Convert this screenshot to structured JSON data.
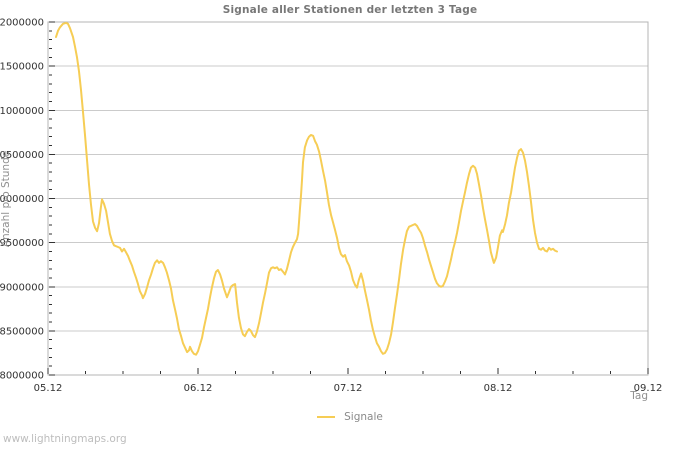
{
  "title": "Signale aller Stationen der letzten 3 Tage",
  "watermark": "www.lightningmaps.org",
  "legend": {
    "label": "Signale"
  },
  "colors": {
    "line": "#f6cd55",
    "grid": "#cbcbcb",
    "border": "#b4b4b4",
    "tick": "#333333",
    "tick_label": "#333333",
    "muted_text": "#909090",
    "title_text": "#777777",
    "watermark_text": "#bdbdbd"
  },
  "chart_data": {
    "type": "line",
    "title": "Signale aller Stationen der letzten 3 Tage",
    "xlabel": "Tag",
    "ylabel": "Anzahl pro Stunde",
    "grid": true,
    "legend_position": "bottom-center",
    "ylim": [
      8000000,
      12000000
    ],
    "x_range_days": [
      0,
      4
    ],
    "y_minor_step": 100000,
    "x_minor_step_days": 0.25,
    "y_ticks": [
      {
        "value": 8000000,
        "label": "8000000"
      },
      {
        "value": 8500000,
        "label": "8500000"
      },
      {
        "value": 9000000,
        "label": "9000000"
      },
      {
        "value": 9500000,
        "label": "9500000"
      },
      {
        "value": 10000000,
        "label": "10000000"
      },
      {
        "value": 10500000,
        "label": "10500000"
      },
      {
        "value": 11000000,
        "label": "11000000"
      },
      {
        "value": 11500000,
        "label": "11500000"
      },
      {
        "value": 12000000,
        "label": "12000000"
      }
    ],
    "x_ticks": [
      {
        "day": 0,
        "label": "05.12"
      },
      {
        "day": 1,
        "label": "06.12"
      },
      {
        "day": 2,
        "label": "07.12"
      },
      {
        "day": 3,
        "label": "08.12"
      },
      {
        "day": 4,
        "label": "09.12"
      }
    ],
    "series": [
      {
        "name": "Signale",
        "color": "#f6cd55",
        "points": [
          [
            0.053,
            11830000
          ],
          [
            0.067,
            11900000
          ],
          [
            0.08,
            11940000
          ],
          [
            0.1,
            11980000
          ],
          [
            0.12,
            11990000
          ],
          [
            0.133,
            11980000
          ],
          [
            0.147,
            11930000
          ],
          [
            0.167,
            11830000
          ],
          [
            0.18,
            11720000
          ],
          [
            0.193,
            11600000
          ],
          [
            0.207,
            11440000
          ],
          [
            0.22,
            11230000
          ],
          [
            0.233,
            10980000
          ],
          [
            0.247,
            10720000
          ],
          [
            0.26,
            10440000
          ],
          [
            0.273,
            10160000
          ],
          [
            0.287,
            9930000
          ],
          [
            0.3,
            9740000
          ],
          [
            0.313,
            9670000
          ],
          [
            0.327,
            9630000
          ],
          [
            0.34,
            9720000
          ],
          [
            0.353,
            9900000
          ],
          [
            0.36,
            9990000
          ],
          [
            0.373,
            9940000
          ],
          [
            0.387,
            9860000
          ],
          [
            0.4,
            9730000
          ],
          [
            0.413,
            9600000
          ],
          [
            0.427,
            9520000
          ],
          [
            0.44,
            9470000
          ],
          [
            0.453,
            9460000
          ],
          [
            0.467,
            9450000
          ],
          [
            0.48,
            9440000
          ],
          [
            0.493,
            9400000
          ],
          [
            0.507,
            9430000
          ],
          [
            0.52,
            9390000
          ],
          [
            0.533,
            9350000
          ],
          [
            0.547,
            9290000
          ],
          [
            0.56,
            9240000
          ],
          [
            0.573,
            9170000
          ],
          [
            0.587,
            9100000
          ],
          [
            0.6,
            9030000
          ],
          [
            0.613,
            8950000
          ],
          [
            0.627,
            8900000
          ],
          [
            0.633,
            8870000
          ],
          [
            0.647,
            8920000
          ],
          [
            0.66,
            8990000
          ],
          [
            0.673,
            9070000
          ],
          [
            0.687,
            9140000
          ],
          [
            0.7,
            9210000
          ],
          [
            0.713,
            9270000
          ],
          [
            0.727,
            9300000
          ],
          [
            0.74,
            9270000
          ],
          [
            0.753,
            9290000
          ],
          [
            0.767,
            9270000
          ],
          [
            0.78,
            9220000
          ],
          [
            0.793,
            9160000
          ],
          [
            0.807,
            9070000
          ],
          [
            0.82,
            8980000
          ],
          [
            0.833,
            8850000
          ],
          [
            0.847,
            8740000
          ],
          [
            0.86,
            8640000
          ],
          [
            0.873,
            8520000
          ],
          [
            0.887,
            8440000
          ],
          [
            0.9,
            8360000
          ],
          [
            0.913,
            8310000
          ],
          [
            0.927,
            8260000
          ],
          [
            0.94,
            8280000
          ],
          [
            0.947,
            8320000
          ],
          [
            0.96,
            8270000
          ],
          [
            0.973,
            8240000
          ],
          [
            0.987,
            8230000
          ],
          [
            1.0,
            8270000
          ],
          [
            1.013,
            8340000
          ],
          [
            1.027,
            8420000
          ],
          [
            1.04,
            8540000
          ],
          [
            1.053,
            8640000
          ],
          [
            1.067,
            8750000
          ],
          [
            1.08,
            8880000
          ],
          [
            1.093,
            8990000
          ],
          [
            1.107,
            9100000
          ],
          [
            1.12,
            9170000
          ],
          [
            1.133,
            9190000
          ],
          [
            1.147,
            9140000
          ],
          [
            1.16,
            9070000
          ],
          [
            1.173,
            8980000
          ],
          [
            1.187,
            8910000
          ],
          [
            1.193,
            8880000
          ],
          [
            1.207,
            8940000
          ],
          [
            1.22,
            9000000
          ],
          [
            1.233,
            9020000
          ],
          [
            1.247,
            9030000
          ],
          [
            1.26,
            8820000
          ],
          [
            1.273,
            8650000
          ],
          [
            1.287,
            8530000
          ],
          [
            1.3,
            8460000
          ],
          [
            1.313,
            8440000
          ],
          [
            1.327,
            8490000
          ],
          [
            1.34,
            8520000
          ],
          [
            1.353,
            8500000
          ],
          [
            1.367,
            8450000
          ],
          [
            1.38,
            8430000
          ],
          [
            1.393,
            8490000
          ],
          [
            1.407,
            8590000
          ],
          [
            1.42,
            8700000
          ],
          [
            1.433,
            8820000
          ],
          [
            1.447,
            8930000
          ],
          [
            1.46,
            9040000
          ],
          [
            1.473,
            9160000
          ],
          [
            1.487,
            9210000
          ],
          [
            1.5,
            9220000
          ],
          [
            1.513,
            9210000
          ],
          [
            1.527,
            9220000
          ],
          [
            1.54,
            9190000
          ],
          [
            1.553,
            9200000
          ],
          [
            1.567,
            9170000
          ],
          [
            1.58,
            9140000
          ],
          [
            1.593,
            9200000
          ],
          [
            1.607,
            9300000
          ],
          [
            1.62,
            9390000
          ],
          [
            1.633,
            9450000
          ],
          [
            1.647,
            9500000
          ],
          [
            1.66,
            9540000
          ],
          [
            1.667,
            9600000
          ],
          [
            1.673,
            9730000
          ],
          [
            1.68,
            9890000
          ],
          [
            1.687,
            10050000
          ],
          [
            1.693,
            10210000
          ],
          [
            1.7,
            10410000
          ],
          [
            1.713,
            10580000
          ],
          [
            1.727,
            10660000
          ],
          [
            1.74,
            10700000
          ],
          [
            1.753,
            10720000
          ],
          [
            1.767,
            10710000
          ],
          [
            1.78,
            10650000
          ],
          [
            1.793,
            10610000
          ],
          [
            1.807,
            10530000
          ],
          [
            1.82,
            10430000
          ],
          [
            1.833,
            10320000
          ],
          [
            1.847,
            10200000
          ],
          [
            1.86,
            10070000
          ],
          [
            1.873,
            9930000
          ],
          [
            1.887,
            9810000
          ],
          [
            1.9,
            9730000
          ],
          [
            1.913,
            9650000
          ],
          [
            1.927,
            9550000
          ],
          [
            1.94,
            9440000
          ],
          [
            1.953,
            9370000
          ],
          [
            1.967,
            9340000
          ],
          [
            1.98,
            9360000
          ],
          [
            1.993,
            9290000
          ],
          [
            2.007,
            9240000
          ],
          [
            2.02,
            9170000
          ],
          [
            2.033,
            9080000
          ],
          [
            2.047,
            9020000
          ],
          [
            2.06,
            8990000
          ],
          [
            2.073,
            9080000
          ],
          [
            2.087,
            9150000
          ],
          [
            2.1,
            9070000
          ],
          [
            2.113,
            8960000
          ],
          [
            2.127,
            8850000
          ],
          [
            2.14,
            8740000
          ],
          [
            2.153,
            8620000
          ],
          [
            2.167,
            8510000
          ],
          [
            2.18,
            8430000
          ],
          [
            2.193,
            8360000
          ],
          [
            2.207,
            8320000
          ],
          [
            2.22,
            8270000
          ],
          [
            2.233,
            8240000
          ],
          [
            2.247,
            8250000
          ],
          [
            2.26,
            8290000
          ],
          [
            2.273,
            8360000
          ],
          [
            2.287,
            8460000
          ],
          [
            2.3,
            8600000
          ],
          [
            2.313,
            8760000
          ],
          [
            2.327,
            8920000
          ],
          [
            2.34,
            9080000
          ],
          [
            2.353,
            9260000
          ],
          [
            2.367,
            9420000
          ],
          [
            2.38,
            9530000
          ],
          [
            2.393,
            9630000
          ],
          [
            2.407,
            9680000
          ],
          [
            2.42,
            9690000
          ],
          [
            2.433,
            9700000
          ],
          [
            2.447,
            9710000
          ],
          [
            2.46,
            9690000
          ],
          [
            2.473,
            9650000
          ],
          [
            2.487,
            9610000
          ],
          [
            2.5,
            9550000
          ],
          [
            2.513,
            9470000
          ],
          [
            2.527,
            9390000
          ],
          [
            2.54,
            9310000
          ],
          [
            2.553,
            9240000
          ],
          [
            2.567,
            9160000
          ],
          [
            2.58,
            9090000
          ],
          [
            2.593,
            9040000
          ],
          [
            2.607,
            9010000
          ],
          [
            2.62,
            9000000
          ],
          [
            2.633,
            9010000
          ],
          [
            2.647,
            9060000
          ],
          [
            2.66,
            9120000
          ],
          [
            2.673,
            9210000
          ],
          [
            2.687,
            9310000
          ],
          [
            2.7,
            9420000
          ],
          [
            2.713,
            9500000
          ],
          [
            2.727,
            9610000
          ],
          [
            2.74,
            9730000
          ],
          [
            2.753,
            9860000
          ],
          [
            2.767,
            9970000
          ],
          [
            2.78,
            10070000
          ],
          [
            2.793,
            10180000
          ],
          [
            2.807,
            10280000
          ],
          [
            2.82,
            10350000
          ],
          [
            2.833,
            10370000
          ],
          [
            2.847,
            10350000
          ],
          [
            2.86,
            10280000
          ],
          [
            2.873,
            10160000
          ],
          [
            2.887,
            10030000
          ],
          [
            2.9,
            9890000
          ],
          [
            2.913,
            9770000
          ],
          [
            2.927,
            9640000
          ],
          [
            2.94,
            9520000
          ],
          [
            2.953,
            9390000
          ],
          [
            2.967,
            9300000
          ],
          [
            2.973,
            9270000
          ],
          [
            2.987,
            9330000
          ],
          [
            3.0,
            9450000
          ],
          [
            3.013,
            9580000
          ],
          [
            3.027,
            9640000
          ],
          [
            3.033,
            9620000
          ],
          [
            3.047,
            9710000
          ],
          [
            3.06,
            9810000
          ],
          [
            3.073,
            9950000
          ],
          [
            3.087,
            10070000
          ],
          [
            3.1,
            10210000
          ],
          [
            3.113,
            10350000
          ],
          [
            3.127,
            10460000
          ],
          [
            3.14,
            10540000
          ],
          [
            3.153,
            10560000
          ],
          [
            3.167,
            10520000
          ],
          [
            3.18,
            10430000
          ],
          [
            3.193,
            10300000
          ],
          [
            3.207,
            10140000
          ],
          [
            3.22,
            9960000
          ],
          [
            3.233,
            9760000
          ],
          [
            3.247,
            9610000
          ],
          [
            3.26,
            9500000
          ],
          [
            3.273,
            9430000
          ],
          [
            3.287,
            9420000
          ],
          [
            3.3,
            9440000
          ],
          [
            3.313,
            9410000
          ],
          [
            3.327,
            9400000
          ],
          [
            3.34,
            9440000
          ],
          [
            3.353,
            9420000
          ],
          [
            3.367,
            9430000
          ],
          [
            3.38,
            9410000
          ],
          [
            3.393,
            9400000
          ]
        ]
      }
    ]
  }
}
